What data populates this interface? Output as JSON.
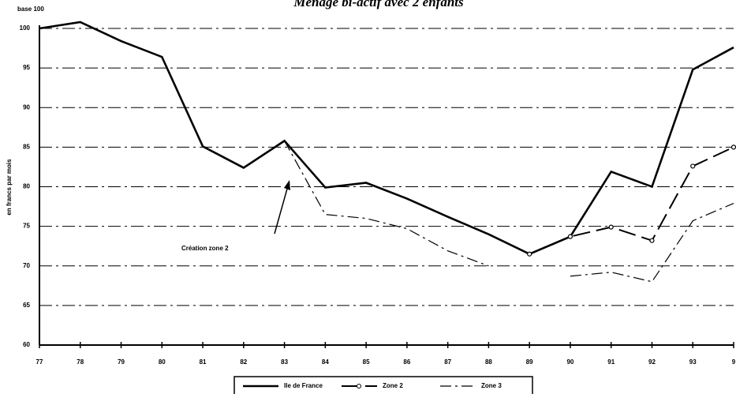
{
  "chart_data": {
    "type": "line",
    "title": "Ménage bi-actif avec 2 enfants",
    "y_unit_label": "base 100",
    "ylabel": "en francs par mois",
    "annotation": "Création zone 2",
    "categories": [
      "77",
      "78",
      "79",
      "80",
      "81",
      "82",
      "83",
      "84",
      "85",
      "86",
      "87",
      "88",
      "89",
      "90",
      "91",
      "92",
      "93",
      "9"
    ],
    "series": [
      {
        "name": "Ile de France",
        "color": "#000000",
        "dash": "none",
        "width": 2.6,
        "markers": false,
        "values": [
          100,
          100.8,
          98.4,
          96.4,
          85.1,
          82.4,
          85.8,
          79.9,
          80.5,
          78.5,
          76.2,
          74,
          71.5,
          73.7,
          81.9,
          80,
          94.8,
          97.6
        ]
      },
      {
        "name": "Zone 2",
        "color": "#000000",
        "dash": "22 8",
        "width": 2,
        "markers": true,
        "values": [
          null,
          null,
          null,
          null,
          null,
          null,
          null,
          null,
          null,
          null,
          null,
          null,
          71.5,
          73.7,
          74.9,
          73.2,
          82.6,
          85
        ]
      },
      {
        "name": "Zone 3",
        "color": "#000000",
        "dash": "14 5 3 5",
        "width": 1.2,
        "markers": false,
        "values": [
          null,
          null,
          null,
          null,
          null,
          null,
          85.8,
          76.5,
          76,
          74.7,
          71.9,
          70,
          null,
          68.7,
          69.2,
          68,
          75.7,
          77.9
        ]
      }
    ],
    "ylim": [
      60,
      100
    ],
    "yticks": [
      60,
      65,
      70,
      75,
      80,
      85,
      90,
      95,
      100
    ],
    "grid": true
  }
}
